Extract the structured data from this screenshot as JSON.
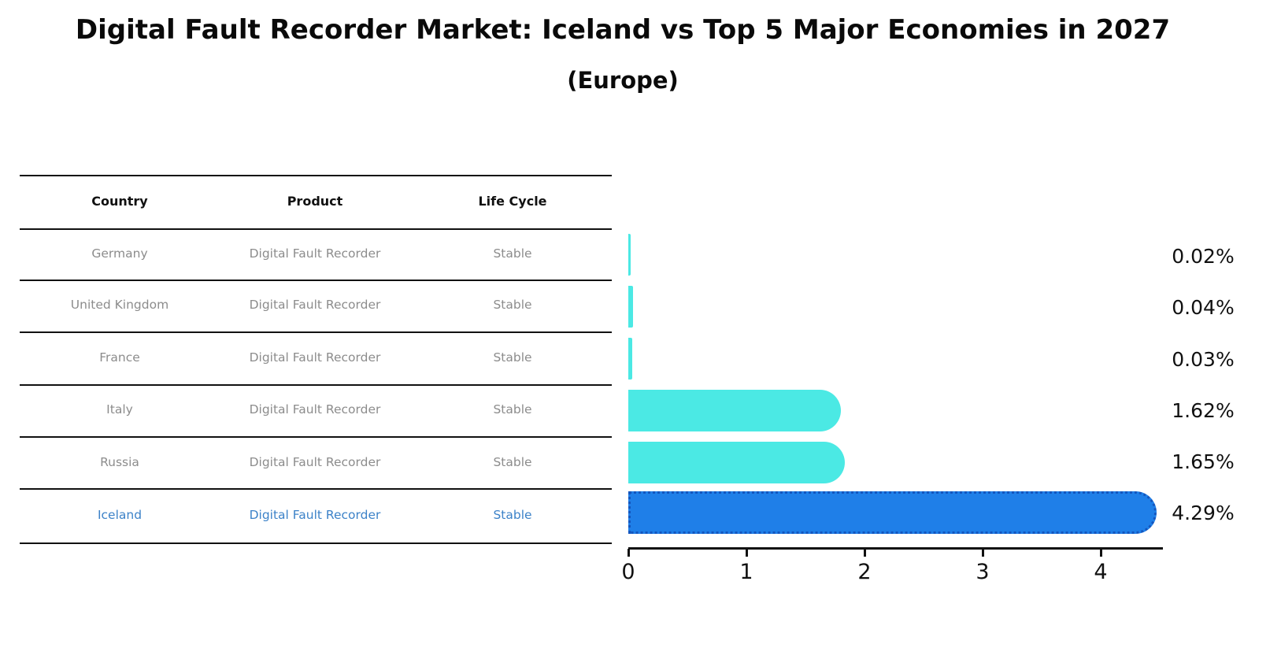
{
  "page": {
    "title": "Digital Fault Recorder Market: Iceland vs Top 5 Major Economies in 2027",
    "subtitle": "(Europe)"
  },
  "table": {
    "headers": [
      "Country",
      "Product",
      "Life Cycle"
    ],
    "rows": [
      {
        "country": "Germany",
        "product": "Digital Fault Recorder",
        "life_cycle": "Stable",
        "highlight": false
      },
      {
        "country": "United Kingdom",
        "product": "Digital Fault Recorder",
        "life_cycle": "Stable",
        "highlight": false
      },
      {
        "country": "France",
        "product": "Digital Fault Recorder",
        "life_cycle": "Stable",
        "highlight": false
      },
      {
        "country": "Italy",
        "product": "Digital Fault Recorder",
        "life_cycle": "Stable",
        "highlight": false
      },
      {
        "country": "Russia",
        "product": "Digital Fault Recorder",
        "life_cycle": "Stable",
        "highlight": false
      },
      {
        "country": "Iceland",
        "product": "Digital Fault Recorder",
        "life_cycle": "Stable",
        "highlight": true
      }
    ]
  },
  "chart_data": {
    "type": "bar",
    "orientation": "horizontal",
    "categories": [
      "Germany",
      "United Kingdom",
      "France",
      "Italy",
      "Russia",
      "Iceland"
    ],
    "values": [
      0.02,
      0.04,
      0.03,
      1.62,
      1.65,
      4.29
    ],
    "value_labels": [
      "0.02%",
      "0.04%",
      "0.03%",
      "1.62%",
      "1.65%",
      "4.29%"
    ],
    "highlight_index": 5,
    "x_ticks": [
      "0",
      "1",
      "2",
      "3",
      "4"
    ],
    "xlim": [
      0,
      4.5
    ],
    "grid": false,
    "legend": false,
    "unit": "percent"
  },
  "colors": {
    "bar_default": "#4be9e4",
    "bar_highlight": "#1f7fe8",
    "bar_highlight_border": "#1456be",
    "highlight_text": "#3c82c8",
    "row_text": "#8c8c8c",
    "text": "#111111",
    "background": "#ffffff"
  }
}
